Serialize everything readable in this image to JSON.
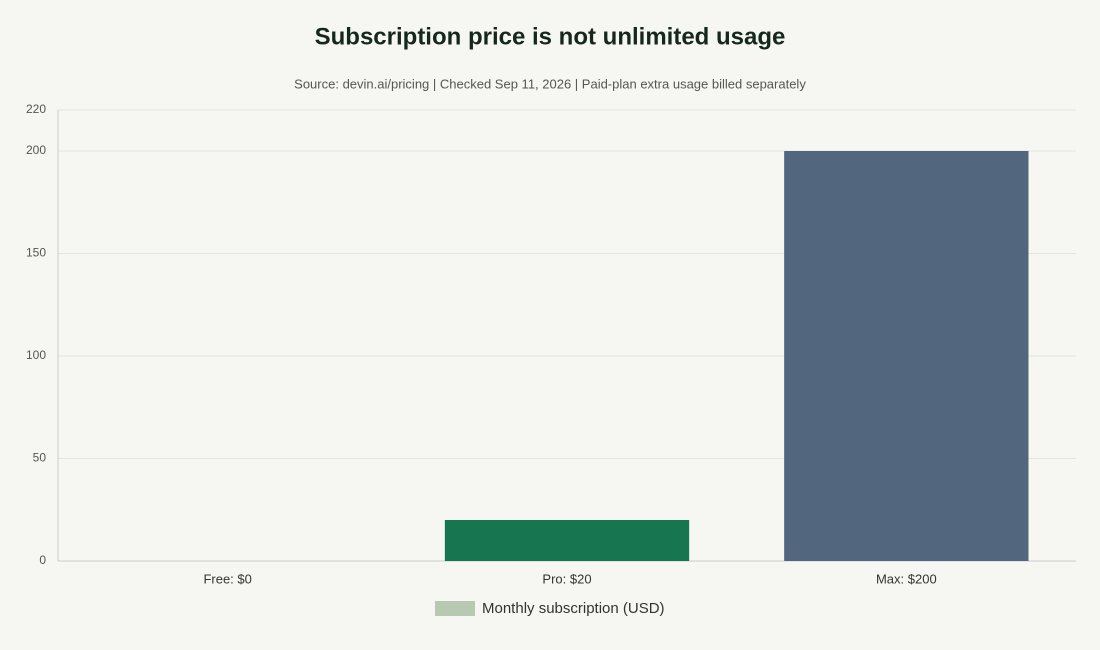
{
  "chart_data": {
    "type": "bar",
    "title": "Subscription price is not unlimited usage",
    "subtitle": "Source: devin.ai/pricing | Checked Sep 11, 2026 | Paid-plan extra usage billed separately",
    "categories": [
      "Free: $0",
      "Pro: $20",
      "Max: $200"
    ],
    "series": [
      {
        "name": "Monthly subscription (USD)",
        "color": "#b7c9b0",
        "values": [
          0,
          20,
          200
        ],
        "colors": [
          "#b7c9b0",
          "#17754f",
          "#52667e"
        ]
      }
    ],
    "ylim": [
      0,
      220
    ],
    "yticks": [
      0,
      50,
      100,
      150,
      200,
      220
    ],
    "grid": true,
    "legend": "bottom"
  }
}
